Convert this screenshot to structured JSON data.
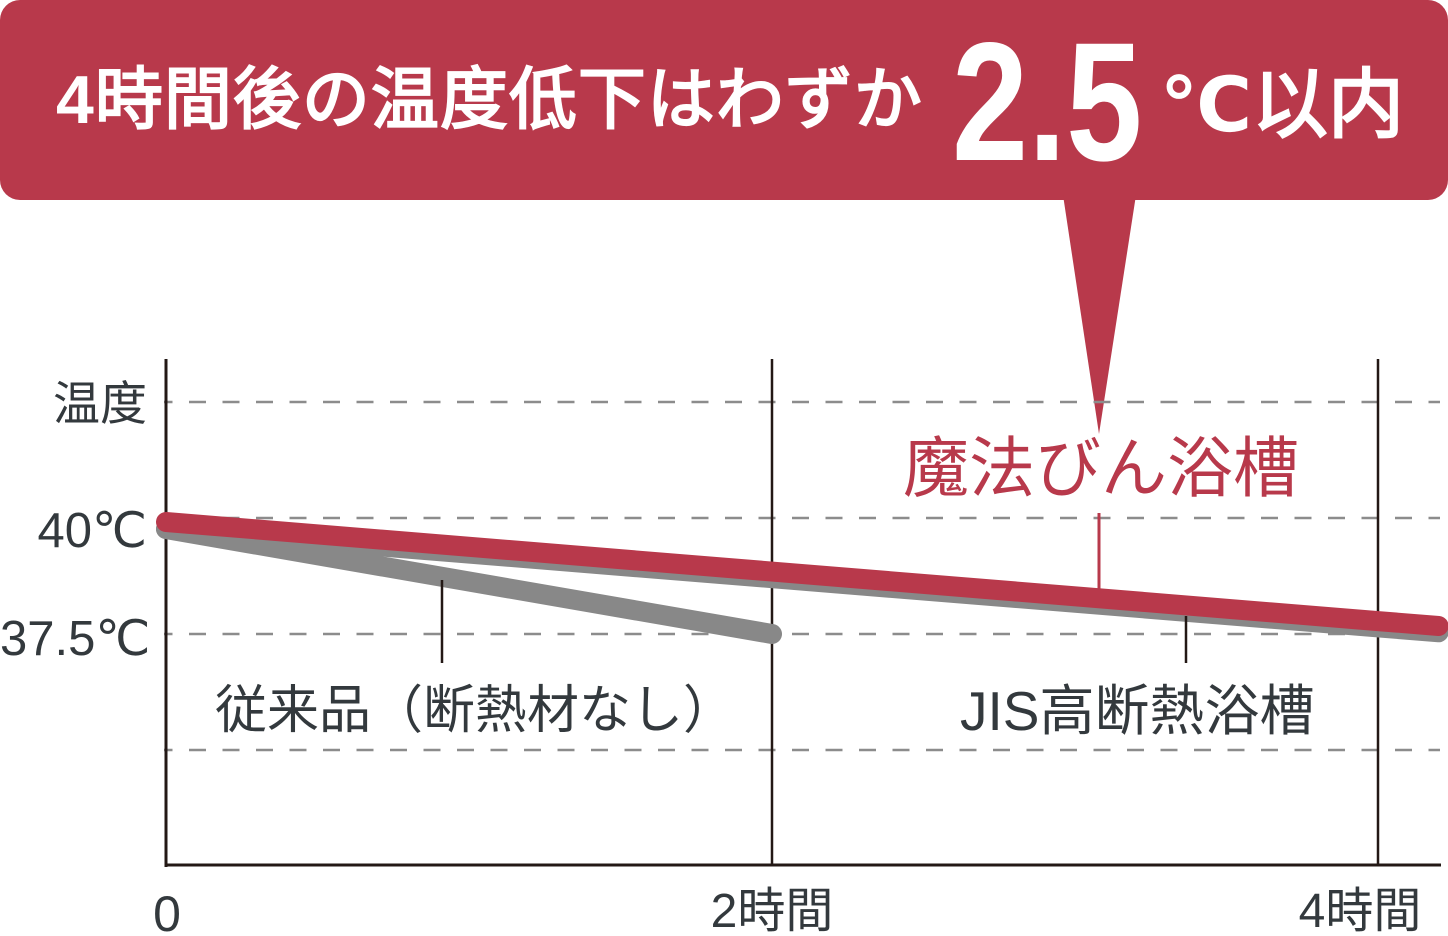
{
  "headline": {
    "prefix": "4時間後の温度低下はわずか",
    "value": "2.5",
    "suffix": "℃以内"
  },
  "colors": {
    "accent": "#B8394B",
    "gray_series": "#888888",
    "axis": "#231815",
    "gridline": "#8C8C8C",
    "text": "#33393D",
    "banner_text": "#FFFFFF"
  },
  "chart_data": {
    "type": "line",
    "title": "4時間後の温度低下はわずか2.5℃以内",
    "xlabel": "",
    "ylabel": "温度",
    "x": [
      0,
      2,
      4
    ],
    "x_unit": "時間",
    "x_tick_labels": [
      "0",
      "2時間",
      "4時間"
    ],
    "y_unit": "℃",
    "y_ticks": [
      {
        "value": 40,
        "label": "40℃"
      },
      {
        "value": 37.5,
        "label": "37.5℃"
      }
    ],
    "y_gridlines": [
      42.5,
      40,
      37.5,
      35
    ],
    "xlim": [
      0,
      4.2
    ],
    "ylim": [
      32.5,
      43.5
    ],
    "grid": true,
    "legend": "direct-labels",
    "series": [
      {
        "name": "JIS高断熱浴槽",
        "color": "#888888",
        "points": [
          [
            0,
            40.0
          ],
          [
            4,
            37.6
          ]
        ],
        "extends_to_edge": true
      },
      {
        "name": "従来品（断熱材なし）",
        "color": "#888888",
        "points": [
          [
            0,
            40.0
          ],
          [
            2,
            37.5
          ]
        ],
        "extends_to_edge": false
      },
      {
        "name": "魔法びん浴槽",
        "color": "#B8394B",
        "points": [
          [
            0,
            40.0
          ],
          [
            4,
            37.8
          ]
        ],
        "extends_to_edge": true
      }
    ],
    "annotations": [
      {
        "text": "4時間後の温度低下はわずか2.5℃以内",
        "target": "魔法びん浴槽",
        "style": "callout"
      }
    ]
  }
}
